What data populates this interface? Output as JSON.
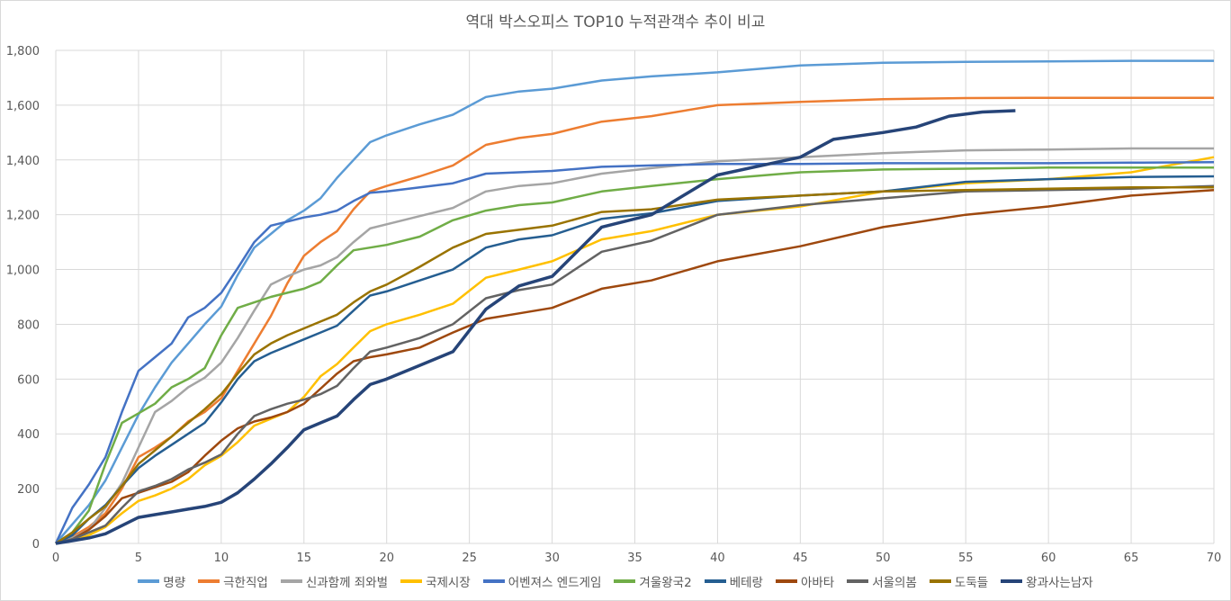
{
  "chart_data": {
    "type": "line",
    "title": "역대 박스오피스 TOP10 누적관객수 추이 비교",
    "xlim": [
      0,
      70
    ],
    "ylim": [
      0,
      1800
    ],
    "xticks": [
      "0",
      "5",
      "10",
      "15",
      "20",
      "25",
      "30",
      "35",
      "40",
      "45",
      "50",
      "55",
      "60",
      "65",
      "70"
    ],
    "yticks": [
      "0",
      "200",
      "400",
      "600",
      "800",
      "1,000",
      "1,200",
      "1,400",
      "1,600",
      "1,800"
    ],
    "grid": true,
    "legend_position": "bottom",
    "x": [
      0,
      1,
      2,
      3,
      4,
      5,
      6,
      7,
      8,
      9,
      10,
      11,
      12,
      13,
      14,
      15,
      16,
      17,
      18,
      19,
      20,
      22,
      24,
      26,
      28,
      30,
      33,
      36,
      40,
      45,
      50,
      55,
      60,
      65,
      70
    ],
    "series": [
      {
        "name": "명량",
        "color": "#5B9BD5",
        "values": [
          0,
          70,
          140,
          230,
          350,
          470,
          570,
          660,
          730,
          800,
          865,
          980,
          1080,
          1130,
          1180,
          1215,
          1260,
          1335,
          1400,
          1465,
          1490,
          1530,
          1565,
          1630,
          1650,
          1660,
          1690,
          1705,
          1720,
          1745,
          1755,
          1758,
          1760,
          1762,
          1762
        ]
      },
      {
        "name": "극한직업",
        "color": "#ED7D31",
        "values": [
          0,
          25,
          60,
          110,
          200,
          315,
          350,
          390,
          445,
          480,
          530,
          630,
          730,
          830,
          950,
          1050,
          1100,
          1140,
          1220,
          1285,
          1305,
          1340,
          1380,
          1455,
          1480,
          1495,
          1540,
          1560,
          1600,
          1612,
          1622,
          1626,
          1627,
          1627,
          1627
        ]
      },
      {
        "name": "신과함께 죄와벌",
        "color": "#A5A5A5",
        "values": [
          0,
          20,
          50,
          130,
          220,
          350,
          480,
          520,
          570,
          605,
          660,
          750,
          850,
          945,
          975,
          1000,
          1015,
          1045,
          1100,
          1150,
          1165,
          1195,
          1225,
          1285,
          1305,
          1315,
          1350,
          1370,
          1395,
          1410,
          1425,
          1435,
          1438,
          1442,
          1442
        ]
      },
      {
        "name": "국제시장",
        "color": "#FFC000",
        "values": [
          0,
          10,
          30,
          60,
          110,
          155,
          175,
          200,
          235,
          285,
          320,
          370,
          430,
          455,
          480,
          535,
          610,
          655,
          715,
          775,
          800,
          835,
          875,
          970,
          1000,
          1030,
          1110,
          1140,
          1200,
          1230,
          1285,
          1315,
          1330,
          1355,
          1410
        ]
      },
      {
        "name": "어벤져스 엔드게임",
        "color": "#4472C4",
        "values": [
          0,
          130,
          215,
          315,
          480,
          630,
          680,
          730,
          825,
          860,
          915,
          1005,
          1100,
          1160,
          1175,
          1190,
          1200,
          1215,
          1250,
          1280,
          1285,
          1300,
          1315,
          1350,
          1355,
          1360,
          1375,
          1380,
          1385,
          1385,
          1388,
          1388,
          1388,
          1390,
          1392
        ]
      },
      {
        "name": "겨울왕국2",
        "color": "#70AD47",
        "values": [
          0,
          40,
          120,
          290,
          440,
          475,
          510,
          570,
          600,
          640,
          760,
          860,
          880,
          900,
          915,
          930,
          955,
          1015,
          1070,
          1080,
          1090,
          1120,
          1180,
          1215,
          1235,
          1245,
          1285,
          1305,
          1330,
          1355,
          1365,
          1368,
          1372,
          1372,
          1372
        ]
      },
      {
        "name": "베테랑",
        "color": "#255E91",
        "values": [
          0,
          30,
          90,
          140,
          210,
          275,
          320,
          360,
          400,
          440,
          515,
          600,
          665,
          695,
          720,
          745,
          770,
          795,
          850,
          905,
          920,
          960,
          1000,
          1080,
          1110,
          1125,
          1185,
          1205,
          1250,
          1270,
          1285,
          1320,
          1330,
          1338,
          1340
        ]
      },
      {
        "name": "아바타",
        "color": "#9E480E",
        "values": [
          0,
          15,
          50,
          100,
          165,
          185,
          205,
          225,
          260,
          320,
          375,
          420,
          445,
          460,
          480,
          510,
          565,
          620,
          665,
          680,
          690,
          715,
          770,
          820,
          840,
          860,
          930,
          960,
          1030,
          1085,
          1155,
          1200,
          1230,
          1270,
          1290
        ]
      },
      {
        "name": "서울의봄",
        "color": "#636363",
        "values": [
          0,
          15,
          40,
          65,
          130,
          190,
          210,
          235,
          270,
          295,
          325,
          400,
          465,
          490,
          510,
          525,
          545,
          575,
          640,
          700,
          715,
          750,
          800,
          895,
          925,
          945,
          1065,
          1105,
          1200,
          1235,
          1260,
          1285,
          1290,
          1295,
          1305
        ]
      },
      {
        "name": "도둑들",
        "color": "#997300",
        "values": [
          0,
          40,
          90,
          135,
          210,
          290,
          340,
          390,
          440,
          490,
          545,
          620,
          690,
          730,
          760,
          785,
          810,
          835,
          880,
          920,
          945,
          1010,
          1080,
          1130,
          1145,
          1160,
          1210,
          1220,
          1255,
          1270,
          1285,
          1290,
          1295,
          1300,
          1300
        ]
      },
      {
        "name": "왕과사는남자",
        "color": "#264478",
        "x": [
          0,
          1,
          2,
          3,
          4,
          5,
          6,
          7,
          8,
          9,
          10,
          11,
          12,
          13,
          14,
          15,
          16,
          17,
          18,
          19,
          20,
          22,
          24,
          26,
          28,
          30,
          33,
          36,
          40,
          45,
          47,
          50,
          52,
          54,
          56,
          58
        ],
        "values": [
          0,
          10,
          20,
          35,
          65,
          95,
          105,
          115,
          125,
          135,
          150,
          185,
          235,
          290,
          350,
          415,
          440,
          465,
          525,
          580,
          600,
          650,
          700,
          855,
          940,
          975,
          1155,
          1200,
          1345,
          1410,
          1475,
          1500,
          1520,
          1560,
          1575,
          1580
        ]
      }
    ]
  }
}
